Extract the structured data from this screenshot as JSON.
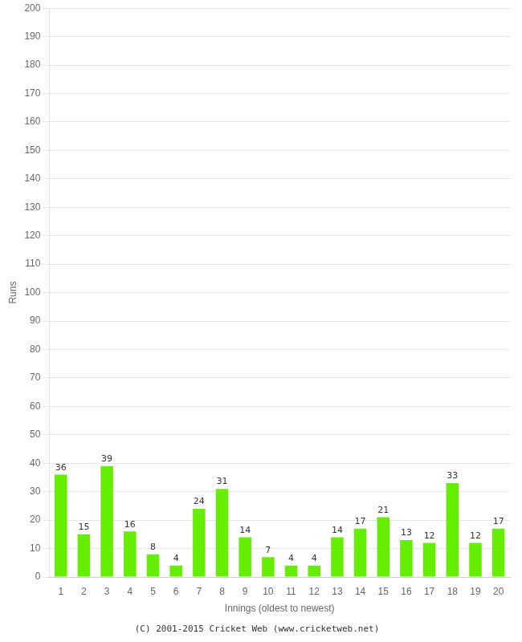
{
  "chart_data": {
    "type": "bar",
    "xlabel": "Innings (oldest to newest)",
    "ylabel": "Runs",
    "categories": [
      1,
      2,
      3,
      4,
      5,
      6,
      7,
      8,
      9,
      10,
      11,
      12,
      13,
      14,
      15,
      16,
      17,
      18,
      19,
      20
    ],
    "values": [
      36,
      15,
      39,
      16,
      8,
      4,
      24,
      31,
      14,
      7,
      4,
      4,
      14,
      17,
      21,
      13,
      12,
      33,
      12,
      17
    ],
    "color": "#66ee00",
    "ylim": [
      0,
      200
    ],
    "yticks": [
      0,
      10,
      20,
      30,
      40,
      50,
      60,
      70,
      80,
      90,
      100,
      110,
      120,
      130,
      140,
      150,
      160,
      170,
      180,
      190,
      200
    ],
    "grid": true,
    "data_labels": true,
    "annotations": [
      "(C) 2001-2015 Cricket Web (www.cricketweb.net)"
    ]
  }
}
